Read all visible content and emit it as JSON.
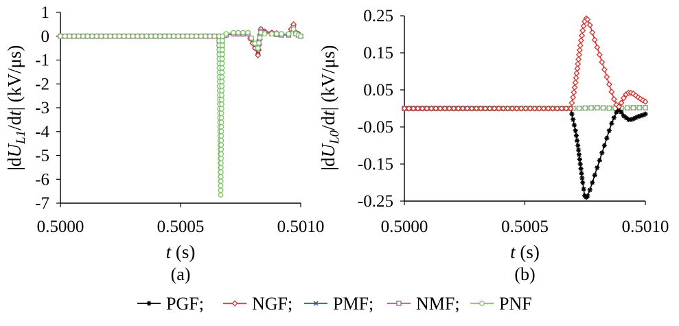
{
  "chart_data": [
    {
      "type": "line",
      "panel_label": "(a)",
      "xlabel": {
        "var": "t",
        "unit": " (s)"
      },
      "ylabel": {
        "prefix": "|dU",
        "sub": "L1",
        "mid": "/d",
        "var": "t",
        "suffix": "| (kV/μs)"
      },
      "xlim": [
        0.5,
        0.501
      ],
      "ylim": [
        -7,
        1
      ],
      "xticks": [
        0.5,
        0.5005,
        0.501
      ],
      "xtick_labels": [
        "0.5000",
        "0.5005",
        "0.5010"
      ],
      "yticks": [
        1,
        0,
        -1,
        -2,
        -3,
        -4,
        -5,
        -6,
        -7
      ],
      "ytick_labels": [
        "1",
        "0",
        "-1",
        "-2",
        "-3",
        "-4",
        "-5",
        "-6",
        "-7"
      ],
      "series": [
        {
          "name": "PGF",
          "color": "#000000",
          "marker": "asterisk",
          "x": [
            0.5,
            0.50066,
            0.500667,
            0.500674,
            0.50069,
            0.50072,
            0.50078,
            0.50081,
            0.500822,
            0.500834,
            0.50085,
            0.50088,
            0.50092,
            0.50095,
            0.50097,
            0.50098,
            0.50099,
            0.501
          ],
          "y": [
            0,
            0,
            -2.5,
            0,
            0.05,
            0.1,
            0.1,
            -0.5,
            -0.75,
            0.3,
            0.2,
            0.15,
            0.1,
            0.1,
            0.45,
            0.15,
            0.1,
            0
          ]
        },
        {
          "name": "NGF",
          "color": "#d9302c",
          "marker": "diamond",
          "x": [
            0.5,
            0.50066,
            0.500667,
            0.500674,
            0.50069,
            0.50072,
            0.50078,
            0.50081,
            0.500822,
            0.500834,
            0.50085,
            0.50088,
            0.50092,
            0.50095,
            0.50097,
            0.50098,
            0.50099,
            0.501
          ],
          "y": [
            0,
            0,
            -2.5,
            0,
            0.05,
            0.1,
            0.1,
            -0.5,
            -0.8,
            0.3,
            0.2,
            0.15,
            0.1,
            0.1,
            0.5,
            0.15,
            0.1,
            0
          ]
        },
        {
          "name": "PMF",
          "color": "#2f5d8a",
          "marker": "x",
          "x": [
            0.5,
            0.50066,
            0.500667,
            0.500674,
            0.50069,
            0.50072,
            0.50078,
            0.50081,
            0.500822,
            0.500834,
            0.50085,
            0.50088,
            0.50092,
            0.50095,
            0.50097,
            0.50098,
            0.50099,
            0.501
          ],
          "y": [
            0,
            0,
            -1.6,
            0,
            0.05,
            0.1,
            0.1,
            -0.3,
            -0.5,
            0.2,
            0.15,
            0.1,
            0.05,
            0.05,
            0.35,
            0.1,
            0.05,
            0
          ]
        },
        {
          "name": "NMF",
          "color": "#a45aa8",
          "marker": "square",
          "x": [
            0.5,
            0.50066,
            0.500667,
            0.500674,
            0.50069,
            0.50072,
            0.50078,
            0.50081,
            0.500822,
            0.500834,
            0.50085,
            0.50088,
            0.50092,
            0.50095,
            0.50097,
            0.50098,
            0.50099,
            0.501
          ],
          "y": [
            0,
            0,
            -1.7,
            0,
            0.05,
            0.1,
            0.1,
            -0.3,
            -0.5,
            0.2,
            0.15,
            0.1,
            0.05,
            0.05,
            0.35,
            0.1,
            0.05,
            0
          ]
        },
        {
          "name": "PNF",
          "color": "#7cc36a",
          "marker": "circle",
          "x": [
            0.5,
            0.50066,
            0.500667,
            0.500674,
            0.50069,
            0.50072,
            0.50078,
            0.50081,
            0.500822,
            0.500834,
            0.50085,
            0.50088,
            0.50092,
            0.50095,
            0.50097,
            0.50098,
            0.50099,
            0.501
          ],
          "y": [
            0,
            0,
            -6.65,
            0,
            0.1,
            0.15,
            0.15,
            -0.3,
            -0.5,
            0.15,
            0.1,
            0.1,
            0.1,
            0.1,
            0.3,
            0.1,
            0.05,
            0
          ]
        }
      ]
    },
    {
      "type": "line",
      "panel_label": "(b)",
      "xlabel": {
        "var": "t",
        "unit": " (s)"
      },
      "ylabel": {
        "prefix": "|dU",
        "sub": "L0",
        "mid": "/d",
        "var": "t",
        "suffix": "| (kV/μs)"
      },
      "xlim": [
        0.5,
        0.501
      ],
      "ylim": [
        -0.25,
        0.25
      ],
      "xticks": [
        0.5,
        0.5005,
        0.501
      ],
      "xtick_labels": [
        "0.5000",
        "0.5005",
        "0.5010"
      ],
      "yticks": [
        0.25,
        0.15,
        0.05,
        -0.05,
        -0.15,
        -0.25
      ],
      "ytick_labels": [
        "0.25",
        "0.15",
        "0.05",
        "-0.05",
        "-0.15",
        "-0.25"
      ],
      "series": [
        {
          "name": "PGF",
          "color": "#000000",
          "marker": "asterisk",
          "x": [
            0.5,
            0.50069,
            0.5007,
            0.50071,
            0.50072,
            0.50073,
            0.50074,
            0.500748,
            0.500755,
            0.50076,
            0.50077,
            0.50078,
            0.50079,
            0.5008,
            0.50081,
            0.50082,
            0.50083,
            0.50084,
            0.50085,
            0.50086,
            0.50087,
            0.50088,
            0.50089,
            0.5009,
            0.50091,
            0.50092,
            0.50093,
            0.50094,
            0.50095,
            0.50096,
            0.50097,
            0.50098,
            0.50099,
            0.501
          ],
          "y": [
            0,
            0,
            -0.03,
            -0.06,
            -0.1,
            -0.15,
            -0.2,
            -0.235,
            -0.24,
            -0.236,
            -0.22,
            -0.2,
            -0.18,
            -0.16,
            -0.14,
            -0.12,
            -0.1,
            -0.08,
            -0.06,
            -0.04,
            -0.025,
            -0.01,
            -0.005,
            -0.01,
            -0.02,
            -0.025,
            -0.03,
            -0.03,
            -0.028,
            -0.025,
            -0.022,
            -0.02,
            -0.018,
            -0.015
          ]
        },
        {
          "name": "NGF",
          "color": "#d9302c",
          "marker": "diamond",
          "x": [
            0.5,
            0.50069,
            0.5007,
            0.50071,
            0.50072,
            0.50073,
            0.50074,
            0.500748,
            0.500755,
            0.50076,
            0.50077,
            0.50078,
            0.50079,
            0.5008,
            0.50081,
            0.50082,
            0.50083,
            0.50084,
            0.50085,
            0.50086,
            0.50087,
            0.50088,
            0.50089,
            0.5009,
            0.50091,
            0.50092,
            0.50093,
            0.50094,
            0.50095,
            0.50096,
            0.50097,
            0.50098,
            0.50099,
            0.501
          ],
          "y": [
            0,
            0,
            0.03,
            0.07,
            0.12,
            0.17,
            0.21,
            0.235,
            0.243,
            0.24,
            0.225,
            0.205,
            0.185,
            0.165,
            0.145,
            0.125,
            0.105,
            0.085,
            0.065,
            0.045,
            0.025,
            0.01,
            0.005,
            0.015,
            0.028,
            0.038,
            0.042,
            0.042,
            0.04,
            0.035,
            0.03,
            0.026,
            0.022,
            0.018
          ]
        },
        {
          "name": "PMF",
          "color": "#2f5d8a",
          "marker": "x",
          "x": [
            0.5,
            0.5007,
            0.50075,
            0.5008,
            0.50085,
            0.5009,
            0.50095,
            0.501
          ],
          "y": [
            0,
            0,
            0.001,
            0.002,
            0.001,
            0.001,
            0.002,
            0.002
          ]
        },
        {
          "name": "NMF",
          "color": "#a45aa8",
          "marker": "square",
          "x": [
            0.5,
            0.5007,
            0.50075,
            0.5008,
            0.50085,
            0.5009,
            0.50095,
            0.501
          ],
          "y": [
            0,
            0,
            0.001,
            0.002,
            0.001,
            0.001,
            0.002,
            0.002
          ]
        },
        {
          "name": "PNF",
          "color": "#7cc36a",
          "marker": "circle",
          "x": [
            0.5,
            0.5007,
            0.50075,
            0.5008,
            0.50085,
            0.5009,
            0.50095,
            0.501
          ],
          "y": [
            0,
            0,
            0.001,
            0.002,
            0.001,
            0.001,
            0.002,
            0.002
          ]
        }
      ]
    }
  ],
  "legend": {
    "placement": "bottom-center",
    "separator": ";",
    "items": [
      "PGF",
      "NGF",
      "PMF",
      "NMF",
      "PNF"
    ]
  }
}
